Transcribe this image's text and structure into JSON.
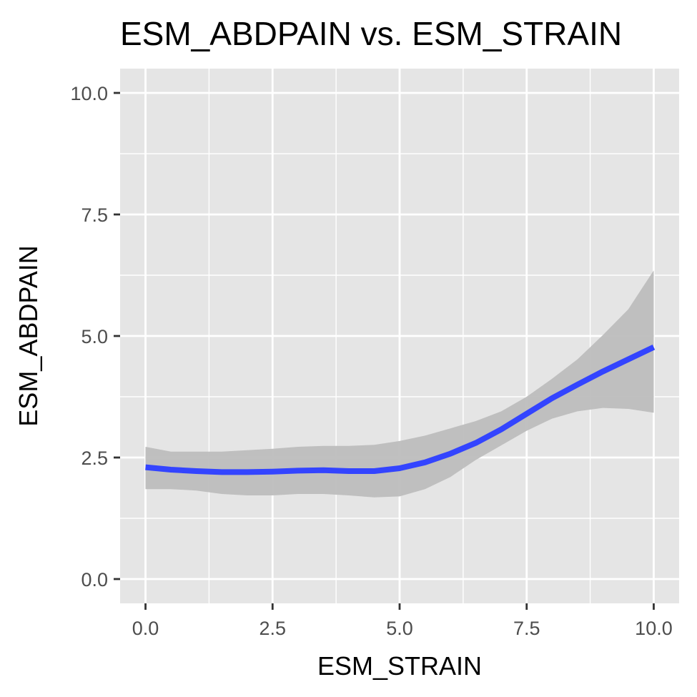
{
  "chart_data": {
    "type": "line",
    "title": "ESM_ABDPAIN vs. ESM_STRAIN",
    "xlabel": "ESM_STRAIN",
    "ylabel": "ESM_ABDPAIN",
    "xlim": [
      -0.5,
      10.5
    ],
    "ylim": [
      -0.5,
      10.5
    ],
    "x_ticks": [
      0,
      2.5,
      5,
      7.5,
      10
    ],
    "x_tick_labels": [
      "0.0",
      "2.5",
      "5.0",
      "7.5",
      "10.0"
    ],
    "y_ticks": [
      0,
      2.5,
      5,
      7.5,
      10
    ],
    "y_tick_labels": [
      "0.0",
      "2.5",
      "5.0",
      "7.5",
      "10.0"
    ],
    "grid": true,
    "legend": "none",
    "colors": {
      "panel": "#e5e5e5",
      "grid": "#ffffff",
      "line": "#3344ff",
      "ribbon": "#bdbdbd"
    },
    "series": [
      {
        "x": [
          0,
          0.5,
          1,
          1.5,
          2,
          2.5,
          3,
          3.5,
          4,
          4.5,
          5,
          5.5,
          6,
          6.5,
          7,
          7.5,
          8,
          8.5,
          9,
          9.5,
          10
        ],
        "y": [
          2.3,
          2.25,
          2.22,
          2.2,
          2.2,
          2.21,
          2.23,
          2.24,
          2.22,
          2.22,
          2.28,
          2.4,
          2.58,
          2.8,
          3.08,
          3.4,
          3.72,
          4.0,
          4.27,
          4.52,
          4.77
        ],
        "ymin": [
          1.85,
          1.85,
          1.82,
          1.75,
          1.72,
          1.72,
          1.75,
          1.75,
          1.72,
          1.68,
          1.7,
          1.85,
          2.1,
          2.45,
          2.75,
          3.05,
          3.3,
          3.45,
          3.52,
          3.5,
          3.42
        ],
        "ymax": [
          2.72,
          2.62,
          2.62,
          2.62,
          2.65,
          2.68,
          2.72,
          2.74,
          2.74,
          2.76,
          2.84,
          2.95,
          3.1,
          3.25,
          3.45,
          3.75,
          4.12,
          4.52,
          5.02,
          5.55,
          6.35
        ]
      }
    ]
  }
}
